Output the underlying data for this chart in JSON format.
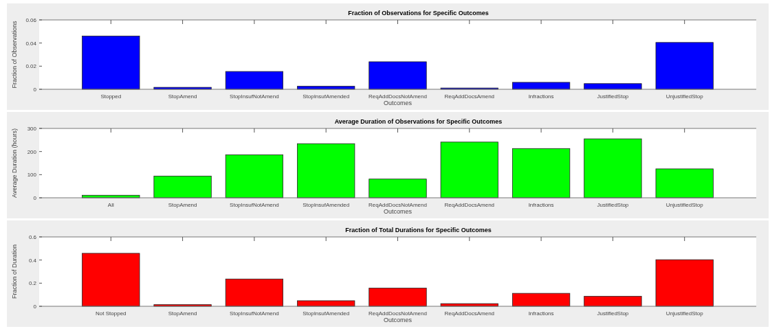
{
  "chart_data": [
    {
      "type": "bar",
      "title": "Fraction of Observations for Specific Outcomes",
      "xlabel": "Outcomes",
      "ylabel": "Fraction of Observations",
      "categories": [
        "Stopped",
        "StopAmend",
        "StopInsufNotAmend",
        "StopInsufAmended",
        "ReqAddDocsNotAmend",
        "ReqAddDocsAmend",
        "Infractions",
        "JustifiedStop",
        "UnjustifiedStop"
      ],
      "values": [
        0.046,
        0.0017,
        0.0154,
        0.0026,
        0.0238,
        0.0011,
        0.006,
        0.0049,
        0.0405
      ],
      "color": "#0000ff",
      "ylim": [
        0,
        0.06
      ],
      "yticks": [
        0,
        0.02,
        0.04,
        0.06
      ]
    },
    {
      "type": "bar",
      "title": "Average Duration of Observations for Specific Outcomes",
      "xlabel": "Outcomes",
      "ylabel": "Average Duration (hours)",
      "categories": [
        "All",
        "StopAmend",
        "StopInsufNotAmend",
        "StopInsufAmended",
        "ReqAddDocsNotAmend",
        "ReqAddDocsAmend",
        "Infractions",
        "JustifiedStop",
        "UnjustifiedStop"
      ],
      "values": [
        11,
        94,
        186,
        234,
        81,
        241,
        213,
        255,
        125
      ],
      "color": "#00ff00",
      "ylim": [
        0,
        300
      ],
      "yticks": [
        0,
        100,
        200,
        300
      ]
    },
    {
      "type": "bar",
      "title": "Fraction of Total Durations for Specific Outcomes",
      "xlabel": "Outcomes",
      "ylabel": "Fraction of Duration",
      "categories": [
        "Not Stopped",
        "StopAmend",
        "StopInsufNotAmend",
        "StopInsufAmended",
        "ReqAddDocsNotAmend",
        "ReqAddDocsAmend",
        "Infractions",
        "JustifiedStop",
        "UnjustifiedStop"
      ],
      "values": [
        0.458,
        0.014,
        0.236,
        0.048,
        0.157,
        0.023,
        0.112,
        0.087,
        0.403
      ],
      "color": "#ff0000",
      "ylim": [
        0,
        0.6
      ],
      "yticks": [
        0,
        0.2,
        0.4,
        0.6
      ]
    }
  ]
}
